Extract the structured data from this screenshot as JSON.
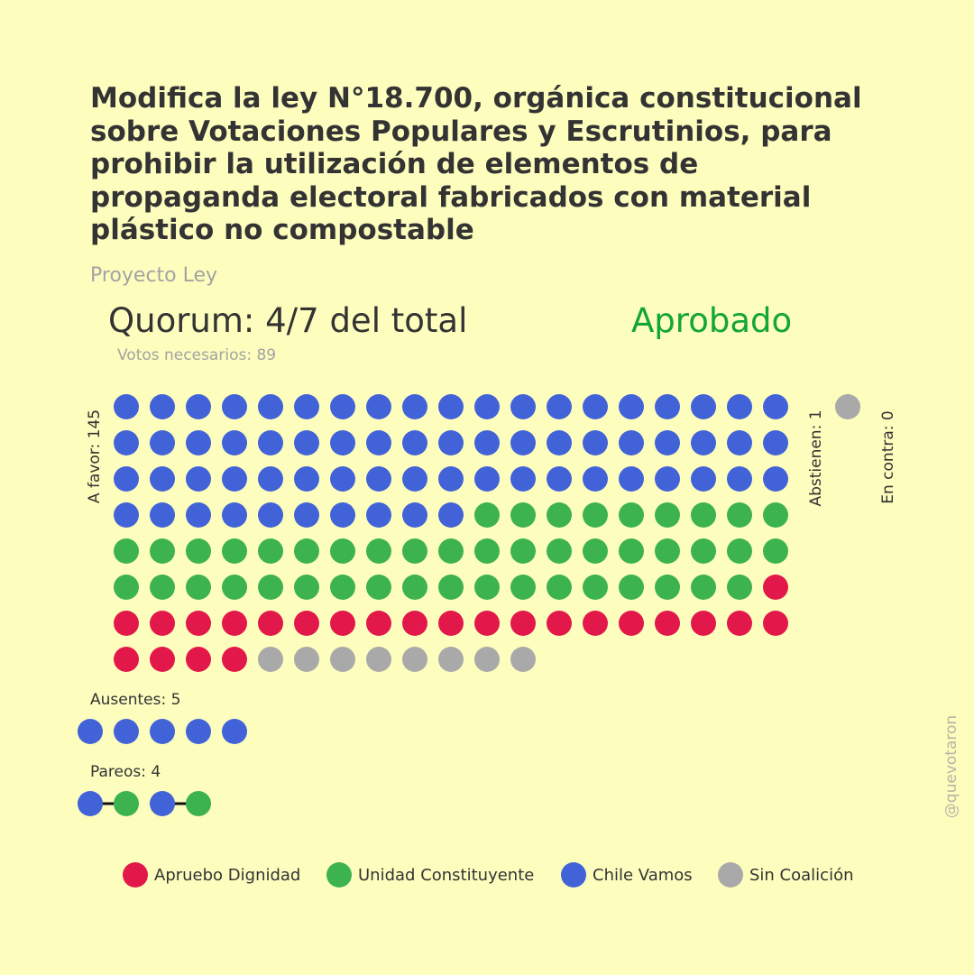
{
  "title": "Modifica la ley N°18.700, orgánica constitucional sobre Votaciones Populares y Escrutinios, para prohibir la utilización de elementos de propaganda electoral fabricados con material plástico no compostable",
  "subtitle": "Proyecto Ley",
  "quorum": "Quorum: 4/7 del total",
  "needed": "Votos necesarios: 89",
  "result": "Aprobado",
  "result_color": "#13A538",
  "credit": "@quevotaron",
  "colors": {
    "Chile Vamos": "#4263D8",
    "Unidad Constituyente": "#3CB34F",
    "Apruebo Dignidad": "#E3184A",
    "Sin Coalición": "#A9A9A9"
  },
  "chart_data": {
    "type": "waffle",
    "groups": [
      {
        "label": "A favor: 145",
        "total": 145,
        "counts": {
          "Chile Vamos": 67,
          "Unidad Constituyente": 46,
          "Apruebo Dignidad": 24,
          "Sin Coalición": 8
        }
      },
      {
        "label": "Abstienen: 1",
        "total": 1,
        "counts": {
          "Sin Coalición": 1
        }
      },
      {
        "label": "En contra: 0",
        "total": 0,
        "counts": {}
      },
      {
        "label": "Ausentes: 5",
        "total": 5,
        "counts": {
          "Chile Vamos": 5
        }
      },
      {
        "label": "Pareos: 4",
        "total": 4,
        "pairs": [
          [
            "Chile Vamos",
            "Unidad Constituyente"
          ],
          [
            "Chile Vamos",
            "Unidad Constituyente"
          ]
        ]
      }
    ],
    "legend": [
      "Apruebo Dignidad",
      "Unidad Constituyente",
      "Chile Vamos",
      "Sin Coalición"
    ]
  }
}
